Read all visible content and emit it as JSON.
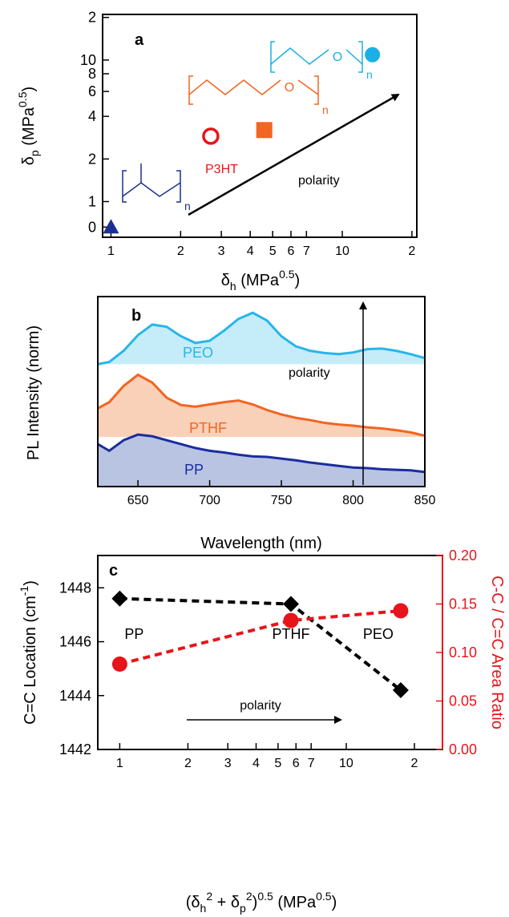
{
  "chart_data": [
    {
      "type": "scatter",
      "panel_label": "a",
      "x_label": [
        "δ",
        "h",
        " (MPa",
        "0.5",
        ")"
      ],
      "y_label": [
        "δ",
        "p",
        " (MPa",
        "0.5",
        ")"
      ],
      "xscale": "log",
      "yscale": "symlog",
      "xlim": [
        0.92,
        21
      ],
      "ylim": [
        -0.4,
        21
      ],
      "xticks": [
        1,
        2,
        3,
        4,
        5,
        6,
        7,
        10,
        {
          "value": 20,
          "label": "2"
        }
      ],
      "yticks": [
        0,
        1,
        2,
        4,
        6,
        8,
        10,
        {
          "value": 20,
          "label": "2"
        }
      ],
      "points": {
        "x": [
          1,
          2.7,
          4.6,
          13.5
        ],
        "values": [
          0,
          2.9,
          3.2,
          10.9
        ],
        "colors": [
          "#1a2f8f",
          "#e8141b",
          "#f26522",
          "#1ab0e6"
        ],
        "markers": [
          "triangle",
          "open-circle",
          "square",
          "circle"
        ]
      },
      "annotations": {
        "p3ht": "P3HT",
        "polarity": "polarity",
        "n": [
          "n",
          "n",
          "n"
        ],
        "o": [
          "O",
          "O"
        ]
      }
    },
    {
      "type": "area",
      "panel_label": "b",
      "x_label": "Wavelength (nm)",
      "y_label": "PL Intensity (norm)",
      "xlim": [
        622,
        850
      ],
      "ylim": [
        0,
        3.4
      ],
      "xticks": [
        650,
        700,
        750,
        800,
        850
      ],
      "x": [
        622,
        630,
        640,
        650,
        660,
        670,
        680,
        690,
        700,
        710,
        720,
        730,
        740,
        750,
        760,
        770,
        780,
        790,
        800,
        810,
        820,
        830,
        840,
        850
      ],
      "series": [
        {
          "name": "PEO",
          "color": "#29b5e8",
          "fill": "#c5ecf9",
          "baseline": 2.19,
          "values": [
            2.19,
            2.23,
            2.43,
            2.71,
            2.9,
            2.86,
            2.69,
            2.57,
            2.61,
            2.79,
            3.0,
            3.11,
            2.97,
            2.69,
            2.51,
            2.43,
            2.39,
            2.37,
            2.4,
            2.46,
            2.47,
            2.43,
            2.37,
            2.3
          ]
        },
        {
          "name": "PTHF",
          "color": "#f26522",
          "fill": "#f9d0b8",
          "baseline": 0.89,
          "values": [
            1.4,
            1.51,
            1.8,
            2.0,
            1.86,
            1.59,
            1.46,
            1.43,
            1.47,
            1.51,
            1.54,
            1.47,
            1.37,
            1.29,
            1.23,
            1.19,
            1.14,
            1.11,
            1.09,
            1.06,
            1.04,
            1.01,
            0.97,
            0.91
          ]
        },
        {
          "name": "PP",
          "color": "#1a2d9e",
          "fill": "#b9c4e3",
          "baseline": 0,
          "values": [
            0.76,
            0.64,
            0.83,
            0.93,
            0.9,
            0.83,
            0.76,
            0.69,
            0.64,
            0.61,
            0.57,
            0.54,
            0.53,
            0.5,
            0.47,
            0.43,
            0.4,
            0.37,
            0.34,
            0.33,
            0.31,
            0.3,
            0.29,
            0.26
          ]
        }
      ],
      "annotations": {
        "polarity": "polarity"
      }
    },
    {
      "type": "line",
      "panel_label": "c",
      "x_label": [
        "(δ",
        "h",
        "2",
        " + δ",
        "p",
        "2",
        ")",
        "0.5",
        " (MPa",
        "0.5",
        ")"
      ],
      "y_label": [
        "C=C Location (cm",
        "-1",
        ")"
      ],
      "y2_label": "C-C / C=C Area Ratio",
      "y2_label_color": "#e8141b",
      "xscale": "log",
      "xlim": [
        0.8,
        26.6
      ],
      "ylim": [
        1442,
        1449.2
      ],
      "y2lim": [
        0,
        0.2
      ],
      "xticks": [
        1,
        2,
        3,
        4,
        5,
        6,
        7,
        10,
        {
          "value": 20,
          "label": "2"
        }
      ],
      "yticks": [
        1442,
        1444,
        1446,
        1448
      ],
      "y2ticks": [
        {
          "value": 0,
          "label": "0.00"
        },
        {
          "value": 0.05,
          "label": "0.05"
        },
        {
          "value": 0.1,
          "label": "0.10"
        },
        {
          "value": 0.15,
          "label": "0.15"
        },
        {
          "value": 0.2,
          "label": "0.20"
        }
      ],
      "x": [
        1,
        5.7,
        17.4
      ],
      "point_labels": [
        "PP",
        "PTHF",
        "PEO"
      ],
      "series": [
        {
          "color": "#000000",
          "marker": "diamond",
          "line_style": "dashed",
          "values": [
            1447.6,
            1447.4,
            1444.2
          ]
        },
        {
          "color": "#e8141b",
          "marker": "circle",
          "line_style": "dashed",
          "axis": "y2",
          "values": [
            0.088,
            0.133,
            0.143
          ]
        }
      ],
      "annotations": {
        "polarity": "polarity"
      }
    }
  ]
}
